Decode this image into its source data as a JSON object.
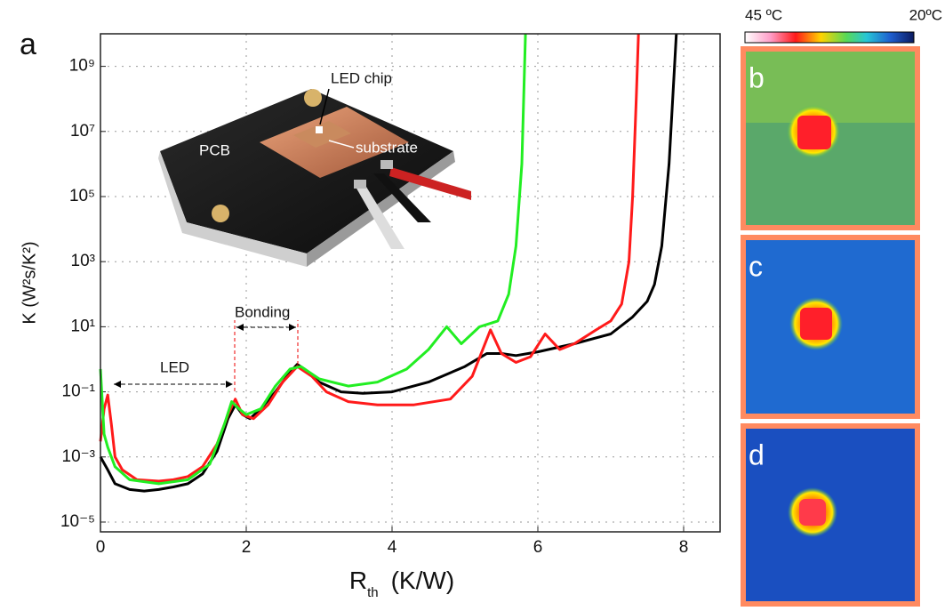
{
  "chart_data": {
    "type": "line",
    "panel_label": "a",
    "y_label": "K  (W²s/K²)",
    "x_label": {
      "main": "R",
      "sub": "th",
      "unit": "(K/W)"
    },
    "log_y": true,
    "grid": true,
    "xlim": [
      0,
      8.5
    ],
    "xticks": [
      0,
      2,
      4,
      6,
      8
    ],
    "ylim": [
      5e-06,
      10000000000
    ],
    "yticks": [
      {
        "value": 1e-05,
        "label": "10⁻⁵"
      },
      {
        "value": 0.001,
        "label": "10⁻³"
      },
      {
        "value": 0.1,
        "label": "10⁻¹"
      },
      {
        "value": 10,
        "label": "10¹"
      },
      {
        "value": 1000,
        "label": "10³"
      },
      {
        "value": 100000,
        "label": "10⁵"
      },
      {
        "value": 10000000,
        "label": "10⁷"
      },
      {
        "value": 1000000000,
        "label": "10⁹"
      }
    ],
    "annotations": {
      "led": "LED",
      "bonding": "Bonding",
      "led_chip": "LED chip",
      "substrate": "substrate",
      "pcb": "PCB"
    },
    "series": [
      {
        "color": "#000000",
        "x": [
          0,
          0.1,
          0.2,
          0.4,
          0.6,
          0.8,
          1.0,
          1.2,
          1.4,
          1.6,
          1.75,
          1.85,
          1.95,
          2.05,
          2.2,
          2.4,
          2.6,
          2.7,
          2.8,
          3.0,
          3.3,
          3.6,
          4.0,
          4.5,
          5.0,
          5.3,
          5.5,
          5.7,
          6.0,
          6.5,
          7.0,
          7.3,
          7.5,
          7.6,
          7.7,
          7.8,
          7.85,
          7.9
        ],
        "values": [
          0.001,
          0.0004,
          0.00015,
          0.0001,
          9e-05,
          0.0001,
          0.00012,
          0.00015,
          0.0003,
          0.0015,
          0.015,
          0.04,
          0.02,
          0.015,
          0.03,
          0.1,
          0.4,
          0.7,
          0.5,
          0.2,
          0.1,
          0.09,
          0.1,
          0.2,
          0.6,
          1.5,
          1.5,
          1.3,
          1.7,
          3,
          6,
          20,
          60,
          200,
          3000,
          1000000,
          100000000,
          10000000000
        ]
      },
      {
        "color": "#ff1a1a",
        "x": [
          0,
          0.05,
          0.1,
          0.15,
          0.2,
          0.3,
          0.5,
          0.8,
          1.0,
          1.2,
          1.4,
          1.6,
          1.75,
          1.85,
          1.95,
          2.1,
          2.3,
          2.5,
          2.7,
          2.9,
          3.1,
          3.4,
          3.8,
          4.3,
          4.8,
          5.1,
          5.35,
          5.5,
          5.7,
          5.9,
          6.1,
          6.3,
          6.5,
          6.8,
          7.0,
          7.15,
          7.25,
          7.3,
          7.35,
          7.38
        ],
        "values": [
          0.003,
          0.03,
          0.08,
          0.01,
          0.001,
          0.0004,
          0.0002,
          0.00018,
          0.0002,
          0.00025,
          0.0005,
          0.0025,
          0.02,
          0.06,
          0.02,
          0.015,
          0.04,
          0.2,
          0.6,
          0.3,
          0.1,
          0.05,
          0.04,
          0.04,
          0.06,
          0.3,
          8,
          1.5,
          0.8,
          1.2,
          6,
          2,
          3,
          8,
          15,
          50,
          1000,
          100000,
          100000000,
          10000000000
        ]
      },
      {
        "color": "#22ee22",
        "x": [
          0,
          0.05,
          0.1,
          0.2,
          0.4,
          0.8,
          1.2,
          1.5,
          1.7,
          1.8,
          1.9,
          2.0,
          2.2,
          2.4,
          2.6,
          2.75,
          3.0,
          3.4,
          3.8,
          4.2,
          4.5,
          4.75,
          4.95,
          5.2,
          5.45,
          5.6,
          5.7,
          5.78,
          5.83
        ],
        "values": [
          0.5,
          0.005,
          0.002,
          0.0005,
          0.0002,
          0.00015,
          0.0002,
          0.0006,
          0.01,
          0.05,
          0.03,
          0.02,
          0.03,
          0.15,
          0.5,
          0.6,
          0.25,
          0.15,
          0.2,
          0.5,
          2,
          10,
          3,
          10,
          15,
          100,
          3000,
          1000000,
          10000000000
        ]
      }
    ]
  },
  "thermal": {
    "colorbar_max": "45 ºC",
    "colorbar_min": "20ºC",
    "panels": [
      "b",
      "c",
      "d"
    ]
  }
}
